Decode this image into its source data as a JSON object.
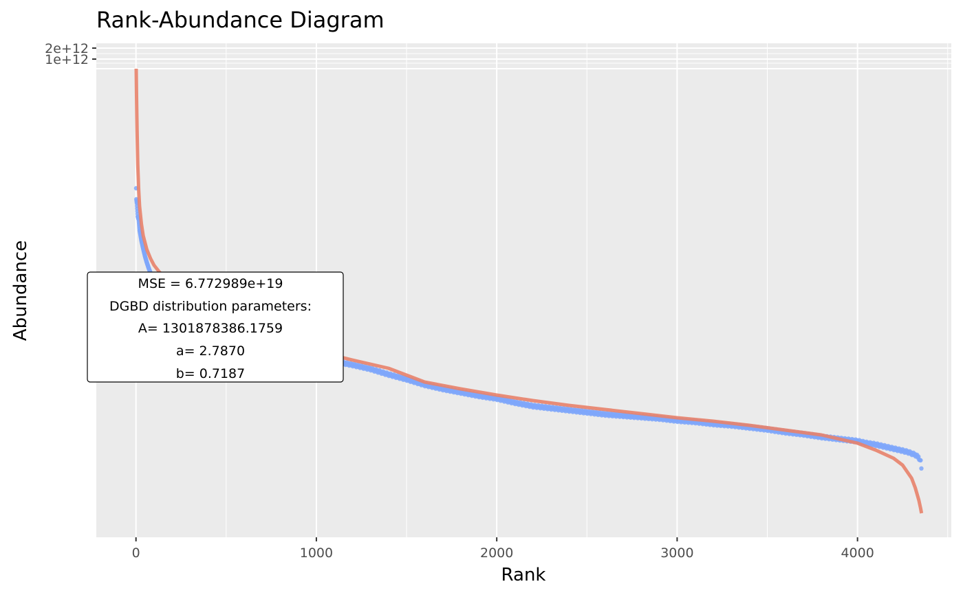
{
  "chart_data": {
    "type": "scatter",
    "title": "Rank-Abundance Diagram",
    "xlabel": "Rank",
    "ylabel": "Abundance",
    "xlim": [
      -220,
      4520
    ],
    "x_ticks": [
      0,
      1000,
      2000,
      3000,
      4000
    ],
    "x_minor_ticks": [
      500,
      1500,
      2500,
      3500,
      4500
    ],
    "y_ticks": [
      {
        "value": 1000000000000,
        "label": "1e+12"
      },
      {
        "value": 2000000000000,
        "label": "2e+12"
      }
    ],
    "y_scale": "nonlinear",
    "grid": true,
    "colors": {
      "panel": "#ebebeb",
      "grid": "#ffffff",
      "observed": "#7fa7fa",
      "fitted": "#e8826a"
    },
    "series": [
      {
        "kind": "points",
        "x": [
          1,
          2,
          5,
          10,
          15,
          20,
          30,
          40,
          50,
          60,
          70,
          80,
          90,
          100,
          120,
          150,
          200,
          300,
          400,
          500,
          600,
          700,
          800,
          900,
          1000,
          1100,
          1200,
          1300,
          1400,
          1500,
          1600,
          1700,
          1800,
          1900,
          2000,
          2100,
          2200,
          2300,
          2400,
          2500,
          2600,
          2700,
          2800,
          2900,
          3000,
          3100,
          3200,
          3300,
          3400,
          3500,
          3600,
          3700,
          3800,
          3900,
          4000,
          4050,
          4100,
          4150,
          4200,
          4250,
          4280,
          4300,
          4320,
          4340,
          4350,
          4355
        ],
        "y": [
          274,
          290,
          296,
          315,
          320,
          335,
          350,
          362,
          373,
          382,
          390,
          397,
          403,
          410,
          418,
          428,
          440,
          456,
          470,
          482,
          492,
          500,
          508,
          515,
          520,
          526,
          531,
          537,
          545,
          552,
          560,
          566,
          571,
          576,
          580,
          586,
          591,
          594,
          597,
          600,
          603,
          605,
          607,
          609,
          612,
          614,
          617,
          619,
          622,
          625,
          629,
          632,
          636,
          639,
          642,
          645,
          647,
          650,
          653,
          656,
          658,
          660,
          662,
          666,
          672,
          683
        ],
        "y_units": "pixel-scale abundance"
      },
      {
        "kind": "line",
        "x": [
          1,
          3,
          6,
          10,
          15,
          20,
          30,
          40,
          60,
          80,
          100,
          130,
          170,
          220,
          300,
          400,
          500,
          600,
          700,
          800,
          900,
          1000,
          1200,
          1400,
          1600,
          1800,
          2000,
          2200,
          2400,
          2600,
          2800,
          3000,
          3200,
          3400,
          3600,
          3800,
          4000,
          4100,
          4200,
          4250,
          4300,
          4320,
          4340,
          4350,
          4355
        ],
        "y": [
          100,
          140,
          190,
          240,
          276,
          300,
          326,
          343,
          363,
          376,
          386,
          396,
          406,
          416,
          430,
          446,
          461,
          473,
          484,
          494,
          503,
          511,
          524,
          536,
          556,
          566,
          575,
          583,
          590,
          596,
          602,
          608,
          613,
          619,
          626,
          633,
          645,
          655,
          667,
          677,
          696,
          710,
          728,
          740,
          747
        ],
        "y_units": "pixel-scale abundance"
      }
    ],
    "annotation": {
      "lines": [
        "MSE = 6.772989e+19",
        "DGBD distribution parameters:",
        "A= 1301878386.1759",
        "a= 2.7870",
        "b= 0.7187"
      ]
    }
  }
}
